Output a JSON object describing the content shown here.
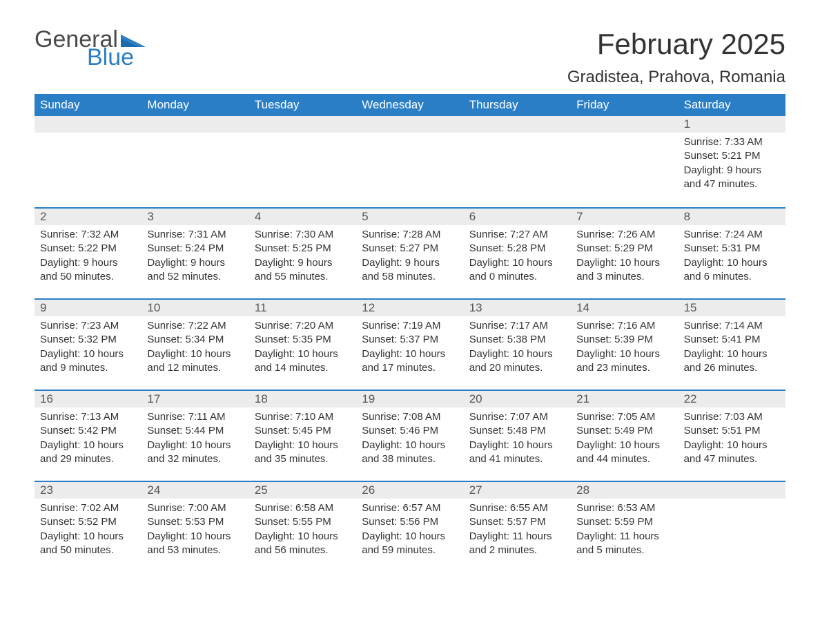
{
  "logo": {
    "text1": "General",
    "text2": "Blue",
    "flag_color": "#2a7ec6"
  },
  "title": "February 2025",
  "location": "Gradistea, Prahova, Romania",
  "colors": {
    "header_bg": "#2a7ec6",
    "header_text": "#ffffff",
    "daynum_bg": "#ececec",
    "border": "#2a7ec6",
    "body_text": "#333333"
  },
  "fonts": {
    "title_size": 42,
    "location_size": 24,
    "dow_size": 17,
    "body_size": 15
  },
  "days_of_week": [
    "Sunday",
    "Monday",
    "Tuesday",
    "Wednesday",
    "Thursday",
    "Friday",
    "Saturday"
  ],
  "weeks": [
    [
      null,
      null,
      null,
      null,
      null,
      null,
      {
        "n": "1",
        "sunrise": "Sunrise: 7:33 AM",
        "sunset": "Sunset: 5:21 PM",
        "dl1": "Daylight: 9 hours",
        "dl2": "and 47 minutes."
      }
    ],
    [
      {
        "n": "2",
        "sunrise": "Sunrise: 7:32 AM",
        "sunset": "Sunset: 5:22 PM",
        "dl1": "Daylight: 9 hours",
        "dl2": "and 50 minutes."
      },
      {
        "n": "3",
        "sunrise": "Sunrise: 7:31 AM",
        "sunset": "Sunset: 5:24 PM",
        "dl1": "Daylight: 9 hours",
        "dl2": "and 52 minutes."
      },
      {
        "n": "4",
        "sunrise": "Sunrise: 7:30 AM",
        "sunset": "Sunset: 5:25 PM",
        "dl1": "Daylight: 9 hours",
        "dl2": "and 55 minutes."
      },
      {
        "n": "5",
        "sunrise": "Sunrise: 7:28 AM",
        "sunset": "Sunset: 5:27 PM",
        "dl1": "Daylight: 9 hours",
        "dl2": "and 58 minutes."
      },
      {
        "n": "6",
        "sunrise": "Sunrise: 7:27 AM",
        "sunset": "Sunset: 5:28 PM",
        "dl1": "Daylight: 10 hours",
        "dl2": "and 0 minutes."
      },
      {
        "n": "7",
        "sunrise": "Sunrise: 7:26 AM",
        "sunset": "Sunset: 5:29 PM",
        "dl1": "Daylight: 10 hours",
        "dl2": "and 3 minutes."
      },
      {
        "n": "8",
        "sunrise": "Sunrise: 7:24 AM",
        "sunset": "Sunset: 5:31 PM",
        "dl1": "Daylight: 10 hours",
        "dl2": "and 6 minutes."
      }
    ],
    [
      {
        "n": "9",
        "sunrise": "Sunrise: 7:23 AM",
        "sunset": "Sunset: 5:32 PM",
        "dl1": "Daylight: 10 hours",
        "dl2": "and 9 minutes."
      },
      {
        "n": "10",
        "sunrise": "Sunrise: 7:22 AM",
        "sunset": "Sunset: 5:34 PM",
        "dl1": "Daylight: 10 hours",
        "dl2": "and 12 minutes."
      },
      {
        "n": "11",
        "sunrise": "Sunrise: 7:20 AM",
        "sunset": "Sunset: 5:35 PM",
        "dl1": "Daylight: 10 hours",
        "dl2": "and 14 minutes."
      },
      {
        "n": "12",
        "sunrise": "Sunrise: 7:19 AM",
        "sunset": "Sunset: 5:37 PM",
        "dl1": "Daylight: 10 hours",
        "dl2": "and 17 minutes."
      },
      {
        "n": "13",
        "sunrise": "Sunrise: 7:17 AM",
        "sunset": "Sunset: 5:38 PM",
        "dl1": "Daylight: 10 hours",
        "dl2": "and 20 minutes."
      },
      {
        "n": "14",
        "sunrise": "Sunrise: 7:16 AM",
        "sunset": "Sunset: 5:39 PM",
        "dl1": "Daylight: 10 hours",
        "dl2": "and 23 minutes."
      },
      {
        "n": "15",
        "sunrise": "Sunrise: 7:14 AM",
        "sunset": "Sunset: 5:41 PM",
        "dl1": "Daylight: 10 hours",
        "dl2": "and 26 minutes."
      }
    ],
    [
      {
        "n": "16",
        "sunrise": "Sunrise: 7:13 AM",
        "sunset": "Sunset: 5:42 PM",
        "dl1": "Daylight: 10 hours",
        "dl2": "and 29 minutes."
      },
      {
        "n": "17",
        "sunrise": "Sunrise: 7:11 AM",
        "sunset": "Sunset: 5:44 PM",
        "dl1": "Daylight: 10 hours",
        "dl2": "and 32 minutes."
      },
      {
        "n": "18",
        "sunrise": "Sunrise: 7:10 AM",
        "sunset": "Sunset: 5:45 PM",
        "dl1": "Daylight: 10 hours",
        "dl2": "and 35 minutes."
      },
      {
        "n": "19",
        "sunrise": "Sunrise: 7:08 AM",
        "sunset": "Sunset: 5:46 PM",
        "dl1": "Daylight: 10 hours",
        "dl2": "and 38 minutes."
      },
      {
        "n": "20",
        "sunrise": "Sunrise: 7:07 AM",
        "sunset": "Sunset: 5:48 PM",
        "dl1": "Daylight: 10 hours",
        "dl2": "and 41 minutes."
      },
      {
        "n": "21",
        "sunrise": "Sunrise: 7:05 AM",
        "sunset": "Sunset: 5:49 PM",
        "dl1": "Daylight: 10 hours",
        "dl2": "and 44 minutes."
      },
      {
        "n": "22",
        "sunrise": "Sunrise: 7:03 AM",
        "sunset": "Sunset: 5:51 PM",
        "dl1": "Daylight: 10 hours",
        "dl2": "and 47 minutes."
      }
    ],
    [
      {
        "n": "23",
        "sunrise": "Sunrise: 7:02 AM",
        "sunset": "Sunset: 5:52 PM",
        "dl1": "Daylight: 10 hours",
        "dl2": "and 50 minutes."
      },
      {
        "n": "24",
        "sunrise": "Sunrise: 7:00 AM",
        "sunset": "Sunset: 5:53 PM",
        "dl1": "Daylight: 10 hours",
        "dl2": "and 53 minutes."
      },
      {
        "n": "25",
        "sunrise": "Sunrise: 6:58 AM",
        "sunset": "Sunset: 5:55 PM",
        "dl1": "Daylight: 10 hours",
        "dl2": "and 56 minutes."
      },
      {
        "n": "26",
        "sunrise": "Sunrise: 6:57 AM",
        "sunset": "Sunset: 5:56 PM",
        "dl1": "Daylight: 10 hours",
        "dl2": "and 59 minutes."
      },
      {
        "n": "27",
        "sunrise": "Sunrise: 6:55 AM",
        "sunset": "Sunset: 5:57 PM",
        "dl1": "Daylight: 11 hours",
        "dl2": "and 2 minutes."
      },
      {
        "n": "28",
        "sunrise": "Sunrise: 6:53 AM",
        "sunset": "Sunset: 5:59 PM",
        "dl1": "Daylight: 11 hours",
        "dl2": "and 5 minutes."
      },
      null
    ]
  ]
}
